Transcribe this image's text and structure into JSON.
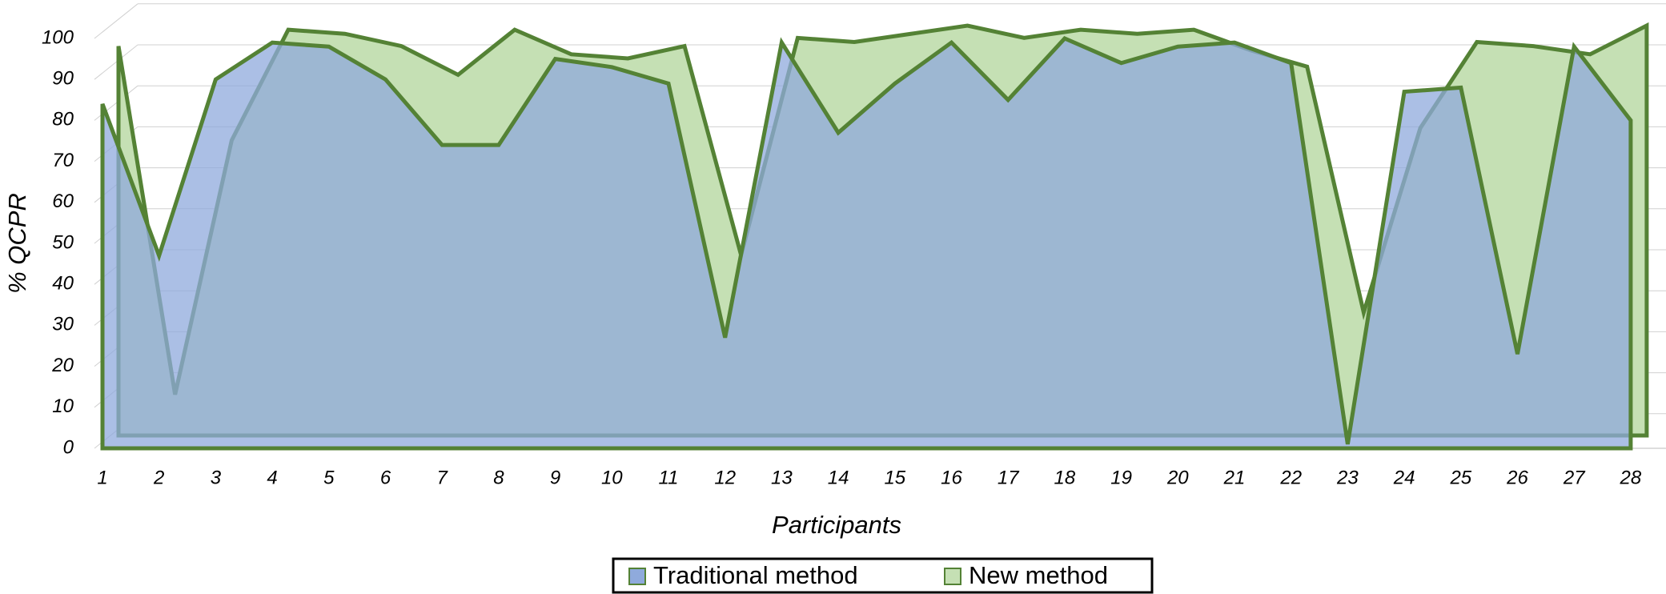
{
  "chart_data": {
    "type": "area",
    "x_label": "Participants",
    "y_label": "% QCPR",
    "categories": [
      "1",
      "2",
      "3",
      "4",
      "5",
      "6",
      "7",
      "8",
      "9",
      "10",
      "11",
      "12",
      "13",
      "14",
      "15",
      "16",
      "17",
      "18",
      "19",
      "20",
      "21",
      "22",
      "23",
      "24",
      "25",
      "26",
      "27",
      "28"
    ],
    "series": [
      {
        "name": "Traditional method",
        "color": "#8faadc",
        "values": [
          84,
          47,
          90,
          99,
          98,
          90,
          74,
          74,
          95,
          93,
          89,
          27,
          99,
          77,
          89,
          99,
          85,
          100,
          94,
          98,
          99,
          94,
          1,
          87,
          88,
          23,
          98,
          80
        ]
      },
      {
        "name": "New method",
        "color": "#c5e0b4",
        "values": [
          95,
          10,
          72,
          99,
          98,
          95,
          88,
          99,
          93,
          92,
          95,
          44,
          97,
          96,
          98,
          100,
          97,
          99,
          98,
          99,
          94,
          90,
          30,
          75,
          96,
          95,
          93,
          100
        ]
      }
    ],
    "ylim": [
      0,
      100
    ],
    "yticks": [
      0,
      10,
      20,
      30,
      40,
      50,
      60,
      70,
      80,
      90,
      100
    ],
    "grid": true,
    "legend": "bottom"
  }
}
